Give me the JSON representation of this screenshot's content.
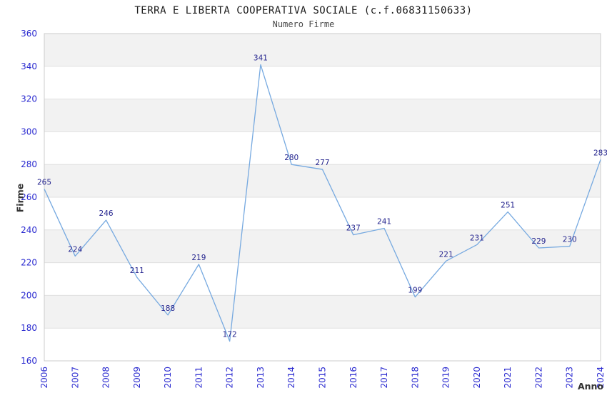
{
  "chart_data": {
    "type": "line",
    "title": "TERRA E LIBERTA COOPERATIVA SOCIALE (c.f.06831150633)",
    "subtitle": "Numero Firme",
    "xlabel": "Anno",
    "ylabel": "Firme",
    "x": [
      "2006",
      "2007",
      "2008",
      "2009",
      "2010",
      "2011",
      "2012",
      "2013",
      "2014",
      "2015",
      "2016",
      "2017",
      "2018",
      "2019",
      "2020",
      "2021",
      "2022",
      "2023",
      "2024"
    ],
    "series": [
      {
        "name": "Numero Firme",
        "values": [
          265,
          224,
          246,
          211,
          188,
          219,
          172,
          341,
          280,
          277,
          237,
          241,
          199,
          221,
          231,
          251,
          229,
          230,
          283
        ]
      }
    ],
    "ylim": [
      160,
      360
    ],
    "ytick_step": 20,
    "grid": true,
    "legend": false,
    "bands_alternating": true,
    "colors": {
      "line": "#76a9e0",
      "data_label": "#26268f",
      "tick_label": "#2b2bd0",
      "band": "#f2f2f2",
      "grid_line": "#e0e0e0",
      "border": "#cccccc",
      "axis_label": "#333333"
    }
  }
}
